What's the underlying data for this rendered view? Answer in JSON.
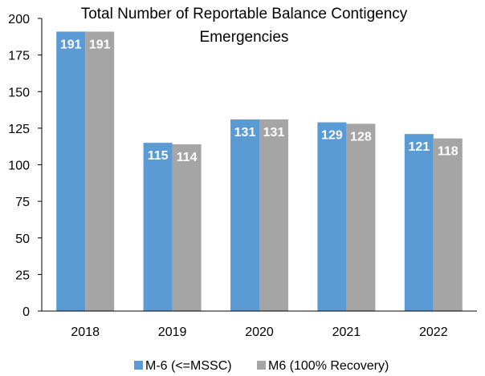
{
  "chart_data": {
    "type": "bar",
    "title_lines": [
      "Total Number of Reportable Balance Contigency",
      "Emergencies"
    ],
    "categories": [
      "2018",
      "2019",
      "2020",
      "2021",
      "2022"
    ],
    "series": [
      {
        "name": "M-6 (<=MSSC)",
        "values": [
          191,
          115,
          131,
          129,
          121
        ],
        "color": "#5b9bd5"
      },
      {
        "name": "M6 (100% Recovery)",
        "values": [
          191,
          114,
          131,
          128,
          118
        ],
        "color": "#a5a5a5"
      }
    ],
    "ylim": [
      0,
      200
    ],
    "yticks": [
      0,
      25,
      50,
      75,
      100,
      125,
      150,
      175,
      200
    ],
    "grid": false,
    "legend_position": "bottom"
  }
}
